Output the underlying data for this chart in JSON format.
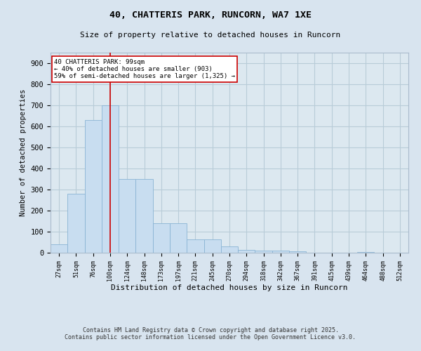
{
  "title_line1": "40, CHATTERIS PARK, RUNCORN, WA7 1XE",
  "title_line2": "Size of property relative to detached houses in Runcorn",
  "xlabel": "Distribution of detached houses by size in Runcorn",
  "ylabel": "Number of detached properties",
  "footnote1": "Contains HM Land Registry data © Crown copyright and database right 2025.",
  "footnote2": "Contains public sector information licensed under the Open Government Licence v3.0.",
  "bar_color": "#c8ddf0",
  "bar_edge_color": "#8ab4d4",
  "fig_bg_color": "#d8e4ef",
  "axes_bg_color": "#dce8f0",
  "grid_color": "#b8ccd8",
  "vline_color": "#cc0000",
  "vline_x": 3,
  "annotation_text": "40 CHATTERIS PARK: 99sqm\n← 40% of detached houses are smaller (903)\n59% of semi-detached houses are larger (1,325) →",
  "annotation_box_color": "#ffffff",
  "annotation_box_edge": "#cc0000",
  "categories": [
    "27sqm",
    "51sqm",
    "76sqm",
    "100sqm",
    "124sqm",
    "148sqm",
    "173sqm",
    "197sqm",
    "221sqm",
    "245sqm",
    "270sqm",
    "294sqm",
    "318sqm",
    "342sqm",
    "367sqm",
    "391sqm",
    "415sqm",
    "439sqm",
    "464sqm",
    "488sqm",
    "512sqm"
  ],
  "values": [
    40,
    280,
    630,
    700,
    350,
    350,
    140,
    140,
    65,
    65,
    30,
    15,
    10,
    10,
    8,
    0,
    0,
    0,
    5,
    0,
    0
  ],
  "ylim": [
    0,
    950
  ],
  "yticks": [
    0,
    100,
    200,
    300,
    400,
    500,
    600,
    700,
    800,
    900
  ]
}
